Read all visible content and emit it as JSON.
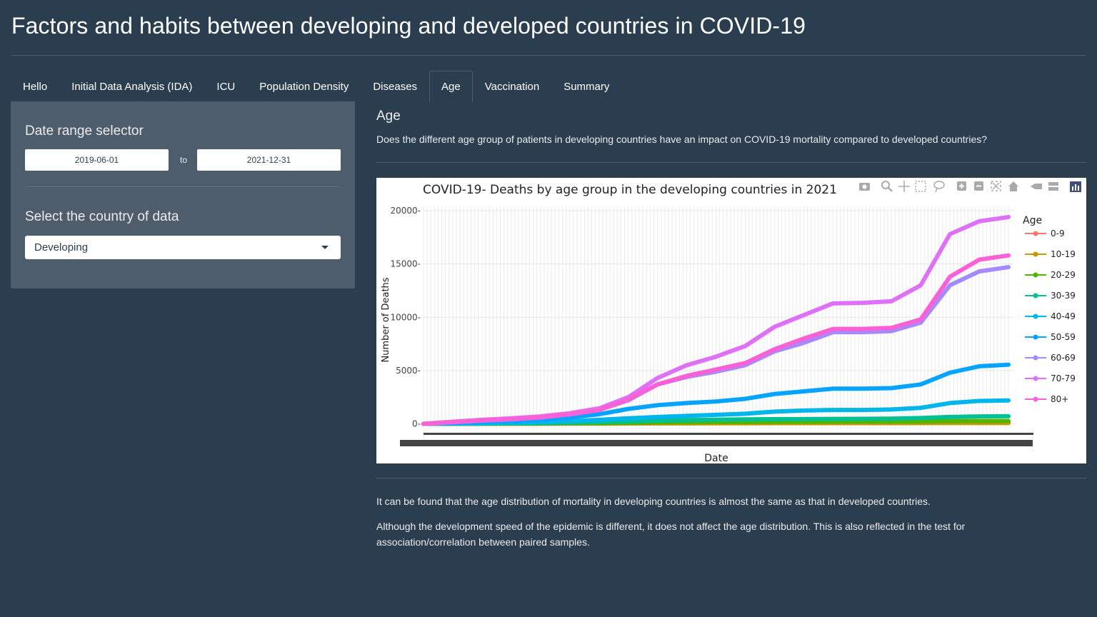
{
  "header": {
    "title": "Factors and habits between developing and developed countries in COVID-19"
  },
  "tabs": [
    {
      "label": "Hello",
      "active": false
    },
    {
      "label": "Initial Data Analysis (IDA)",
      "active": false
    },
    {
      "label": "ICU",
      "active": false
    },
    {
      "label": "Population Density",
      "active": false
    },
    {
      "label": "Diseases",
      "active": false
    },
    {
      "label": "Age",
      "active": true
    },
    {
      "label": "Vaccination",
      "active": false
    },
    {
      "label": "Summary",
      "active": false
    }
  ],
  "sidebar": {
    "date_range_label": "Date range selector",
    "date_start": "2019-06-01",
    "date_to": "to",
    "date_end": "2021-12-31",
    "country_label": "Select the country of data",
    "country_selected": "Developing"
  },
  "main": {
    "section_title": "Age",
    "question": "Does the different age group of patients in developing countries have an impact on COVID-19 mortality compared to developed countries?",
    "para1": "It can be found that the age distribution of mortality in developing countries is almost the same as that in developed countries.",
    "para2": "Although the development speed of the epidemic is different, it does not affect the age distribution. This is also reflected in the test for association/correlation between paired samples."
  },
  "icons": [
    "camera-icon",
    "zoom-icon",
    "pan-icon",
    "box-select-icon",
    "lasso-icon",
    "zoom-in-icon",
    "zoom-out-icon",
    "autoscale-icon",
    "reset-axes-icon",
    "hover-closest-icon",
    "hover-compare-icon",
    "plotly-logo-icon"
  ],
  "chart_data": {
    "type": "line",
    "title": "COVID-19- Deaths by age group in the developing countries in 2021",
    "xlabel": "Date",
    "ylabel": "Number of Deaths",
    "legend_title": "Age",
    "legend_position": "right",
    "yticks": [
      0,
      5000,
      10000,
      15000,
      20000
    ],
    "ylim": [
      -500,
      20400
    ],
    "grid": true,
    "x_points": 21,
    "series": [
      {
        "name": "0-9",
        "color": "#F8766D",
        "values": [
          0,
          5,
          10,
          15,
          20,
          25,
          30,
          40,
          50,
          55,
          60,
          65,
          70,
          70,
          75,
          75,
          80,
          80,
          85,
          90,
          90
        ]
      },
      {
        "name": "10-19",
        "color": "#C49A00",
        "values": [
          0,
          5,
          10,
          15,
          20,
          25,
          30,
          40,
          50,
          55,
          60,
          65,
          70,
          70,
          75,
          75,
          80,
          80,
          85,
          90,
          90
        ]
      },
      {
        "name": "20-29",
        "color": "#53B400",
        "values": [
          0,
          10,
          20,
          30,
          40,
          60,
          80,
          100,
          130,
          150,
          170,
          180,
          190,
          195,
          200,
          205,
          210,
          230,
          250,
          260,
          260
        ]
      },
      {
        "name": "30-39",
        "color": "#00C094",
        "values": [
          0,
          15,
          30,
          50,
          80,
          120,
          170,
          230,
          300,
          350,
          390,
          420,
          440,
          450,
          460,
          470,
          490,
          550,
          650,
          700,
          710
        ]
      },
      {
        "name": "40-49",
        "color": "#00B6EB",
        "values": [
          0,
          30,
          60,
          100,
          160,
          250,
          380,
          520,
          650,
          750,
          850,
          950,
          1150,
          1250,
          1300,
          1300,
          1350,
          1500,
          1950,
          2150,
          2200
        ]
      },
      {
        "name": "50-59",
        "color": "#06A4FF",
        "values": [
          0,
          80,
          160,
          250,
          380,
          600,
          900,
          1400,
          1750,
          1950,
          2100,
          2350,
          2800,
          3050,
          3300,
          3300,
          3350,
          3700,
          4800,
          5400,
          5550
        ]
      },
      {
        "name": "60-69",
        "color": "#A58AFF",
        "values": [
          0,
          150,
          300,
          420,
          600,
          900,
          1300,
          2200,
          3700,
          4400,
          4900,
          5500,
          6800,
          7600,
          8600,
          8600,
          8700,
          9500,
          13000,
          14300,
          14700
        ]
      },
      {
        "name": "70-79",
        "color": "#DF70F8",
        "values": [
          0,
          200,
          380,
          520,
          700,
          1000,
          1450,
          2500,
          4300,
          5500,
          6300,
          7300,
          9100,
          10200,
          11300,
          11350,
          11500,
          13000,
          17800,
          19000,
          19400
        ]
      },
      {
        "name": "80+",
        "color": "#FB61D7",
        "values": [
          0,
          160,
          320,
          450,
          620,
          900,
          1300,
          2300,
          3700,
          4500,
          5100,
          5700,
          7000,
          8000,
          8900,
          8900,
          9000,
          9800,
          13800,
          15400,
          15800
        ]
      }
    ]
  }
}
